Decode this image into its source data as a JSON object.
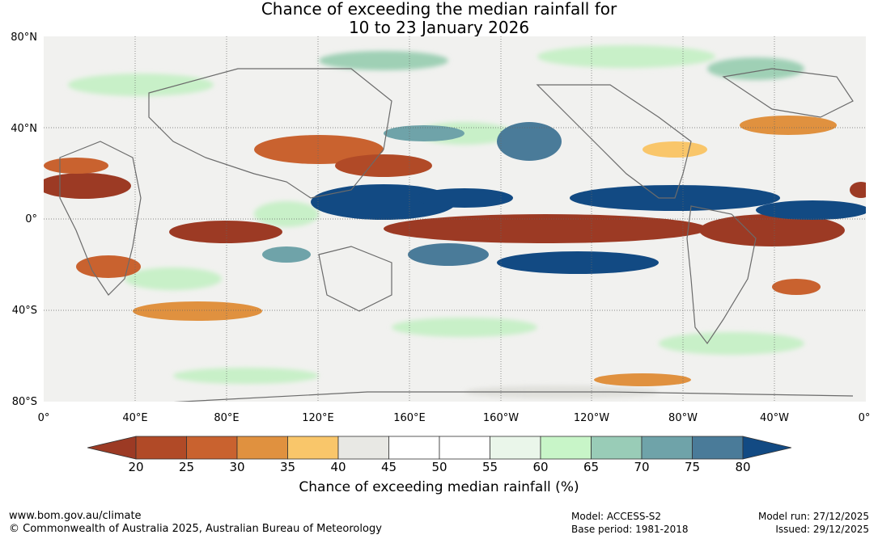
{
  "title_line1": "Chance of exceeding the median rainfall for",
  "title_line2": "10 to 23 January 2026",
  "lat_labels": [
    "80°N",
    "40°N",
    "0°",
    "40°S",
    "80°S"
  ],
  "lon_labels": [
    "0°",
    "40°E",
    "80°E",
    "120°E",
    "160°E",
    "160°W",
    "120°W",
    "80°W",
    "40°W",
    "0°"
  ],
  "colorbar": {
    "ticks": [
      "20",
      "25",
      "30",
      "35",
      "40",
      "45",
      "50",
      "55",
      "60",
      "65",
      "70",
      "75",
      "80"
    ],
    "colors": [
      "#9c3a24",
      "#b14a27",
      "#c9622f",
      "#e0913f",
      "#f9c66a",
      "#e8e8e4",
      "#ffffff",
      "#ffffff",
      "#eaf6ea",
      "#c8f5c8",
      "#99ccb7",
      "#6fa3a9",
      "#4a7b99",
      "#124a83"
    ],
    "title": "Chance of exceeding median rainfall (%)"
  },
  "footer": {
    "url": "www.bom.gov.au/climate",
    "copyright": "© Commonwealth of Australia 2025, Australian Bureau of Meteorology",
    "model": "Model: ACCESS-S2",
    "base_period": "Base period: 1981-2018",
    "model_run": "Model run: 27/12/2025",
    "issued": "Issued: 29/12/2025"
  }
}
